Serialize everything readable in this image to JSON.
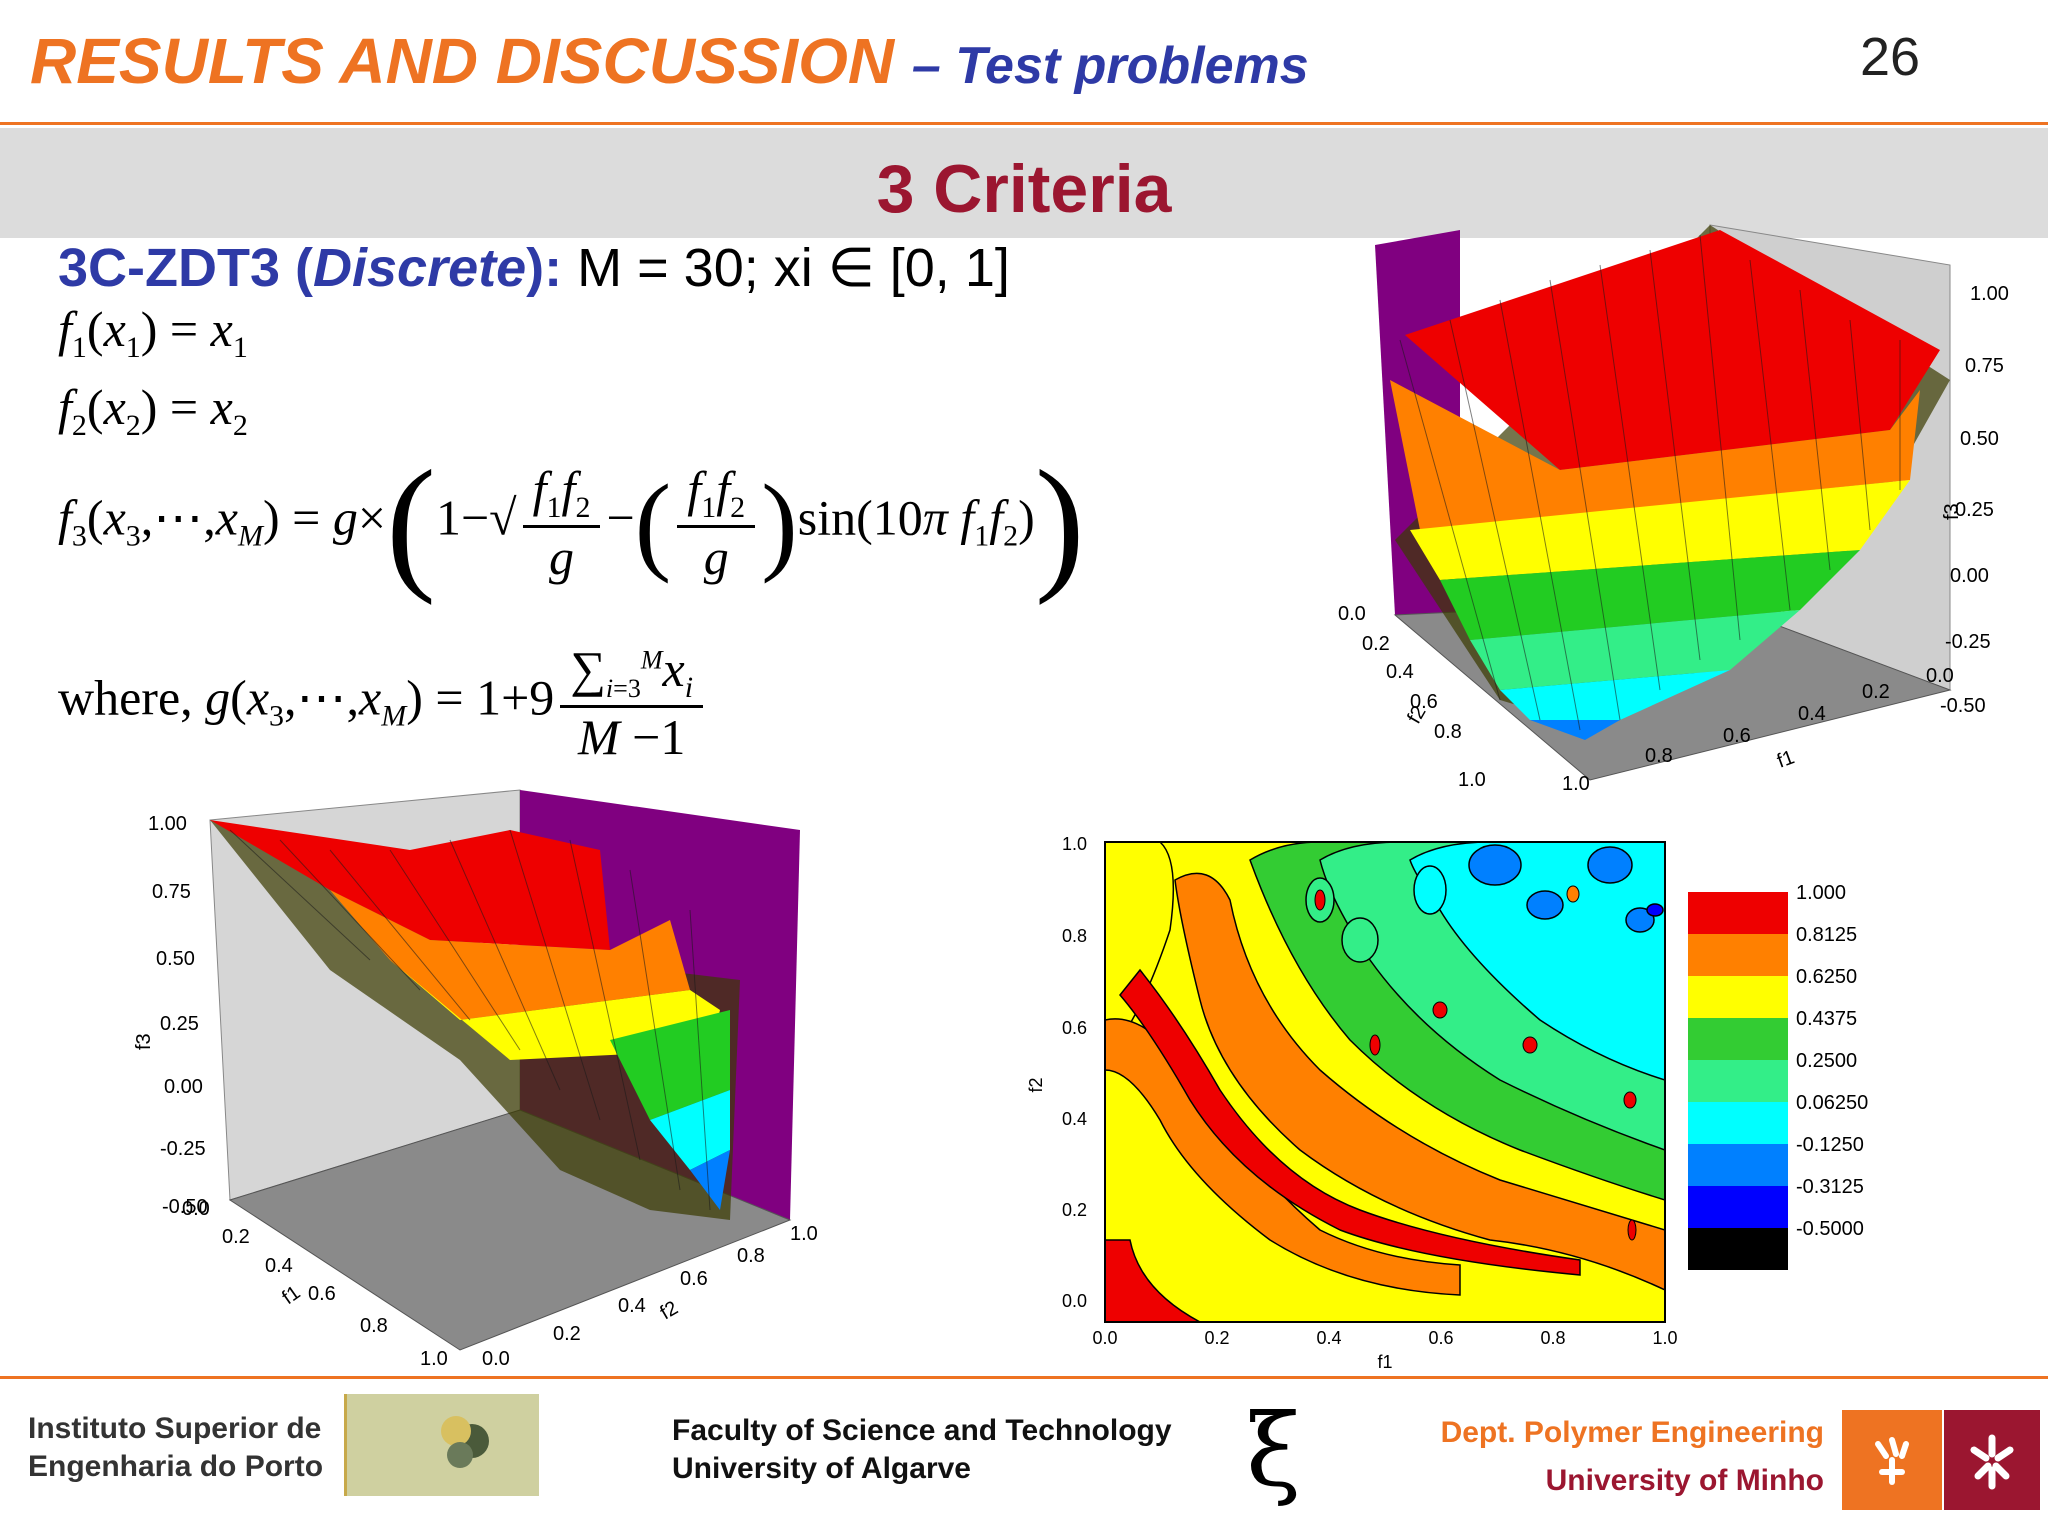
{
  "header": {
    "title": "RESULTS AND DISCUSSION",
    "title_sub": "– Test problems",
    "page_number": "26",
    "section_title": "3 Criteria"
  },
  "problem": {
    "name": "3C-ZDT3",
    "paren_open": "(",
    "variant": "Discrete",
    "paren_close": "):",
    "rest": "M = 30; xi ∈ [0, 1]"
  },
  "equations": {
    "where_label": "where,"
  },
  "contour_plot": {
    "xlabel": "f1",
    "ylabel": "f2",
    "x_ticks": [
      "0.0",
      "0.2",
      "0.4",
      "0.6",
      "0.8",
      "1.0"
    ],
    "y_ticks": [
      "0.0",
      "0.2",
      "0.4",
      "0.6",
      "0.8",
      "1.0"
    ],
    "legend": [
      {
        "label": "1.000",
        "color": "#ee0000"
      },
      {
        "label": "0.8125",
        "color": "#ff8000"
      },
      {
        "label": "0.6250",
        "color": "#ffff00"
      },
      {
        "label": "0.4375",
        "color": "#33cc33"
      },
      {
        "label": "0.2500",
        "color": "#33ee88"
      },
      {
        "label": "0.06250",
        "color": "#00ffff"
      },
      {
        "label": "-0.1250",
        "color": "#0080ff"
      },
      {
        "label": "-0.3125",
        "color": "#0000ff"
      },
      {
        "label": "-0.5000",
        "color": "#000000"
      }
    ]
  },
  "surface_top_right": {
    "z_ticks": [
      "1.00",
      "0.75",
      "0.50",
      "0.25",
      "0.00",
      "-0.25",
      "-0.50"
    ],
    "f2_ticks": [
      "0.0",
      "0.2",
      "0.4",
      "0.6",
      "0.8",
      "1.0"
    ],
    "f1_ticks": [
      "1.0",
      "0.8",
      "0.6",
      "0.4",
      "0.2",
      "0.0"
    ],
    "f2_label": "f2",
    "f1_label": "f1",
    "z_label": "f3"
  },
  "surface_bottom_left": {
    "z_ticks": [
      "1.00",
      "0.75",
      "0.50",
      "0.25",
      "0.00",
      "-0.25",
      "-0.50"
    ],
    "f1_ticks": [
      "0.0",
      "0.2",
      "0.4",
      "0.6",
      "0.8",
      "1.0"
    ],
    "f2_ticks": [
      "0.0",
      "0.2",
      "0.4",
      "0.6",
      "0.8",
      "1.0"
    ],
    "z_label": "f3",
    "f1_label": "f1",
    "f2_label": "f2"
  },
  "footer": {
    "isep_line1": "Instituto Superior de",
    "isep_line2": "Engenharia do Porto",
    "fct_line1": "Faculty of Science and Technology",
    "fct_line2": "University of Algarve",
    "xi_symbol": "ξ",
    "dept_line1": "Dept. Polymer Engineering",
    "dept_line2": "University of Minho"
  }
}
